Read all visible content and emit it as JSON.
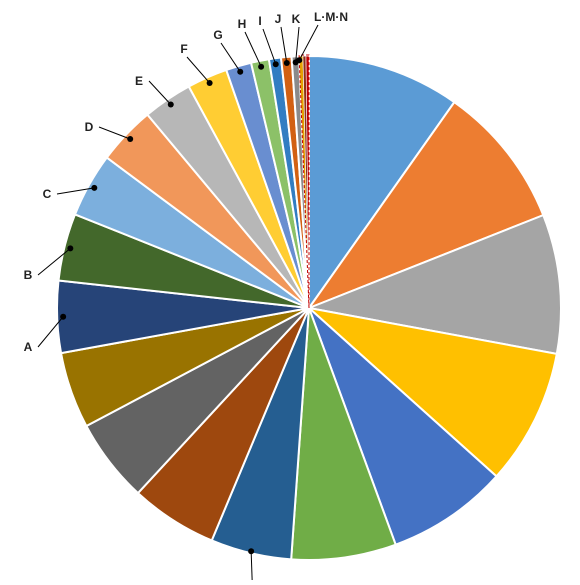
{
  "chart_data": {
    "type": "pie",
    "title": "",
    "legend": "none",
    "slices": [
      {
        "label": "",
        "value": 10.2,
        "color": "#5b9bd5"
      },
      {
        "label": "",
        "value": 9.6,
        "color": "#ed7d31"
      },
      {
        "label": "",
        "value": 9.3,
        "color": "#a5a5a5"
      },
      {
        "label": "",
        "value": 9.1,
        "color": "#ffc000"
      },
      {
        "label": "",
        "value": 8.1,
        "color": "#4472c4"
      },
      {
        "label": "",
        "value": 7.0,
        "color": "#70ad47"
      },
      {
        "label": "",
        "value": 5.4,
        "color": "#255e91"
      },
      {
        "label": "",
        "value": 5.8,
        "color": "#9e480e"
      },
      {
        "label": "",
        "value": 5.6,
        "color": "#636363"
      },
      {
        "label": "",
        "value": 5.1,
        "color": "#997300"
      },
      {
        "label": "A",
        "value": 4.8,
        "color": "#264478"
      },
      {
        "label": "B",
        "value": 4.5,
        "color": "#43682b"
      },
      {
        "label": "C",
        "value": 4.3,
        "color": "#7cafdd"
      },
      {
        "label": "D",
        "value": 3.9,
        "color": "#f1975a"
      },
      {
        "label": "E",
        "value": 3.3,
        "color": "#b7b7b7"
      },
      {
        "label": "F",
        "value": 2.7,
        "color": "#ffcd33"
      },
      {
        "label": "G",
        "value": 1.7,
        "color": "#698ed0"
      },
      {
        "label": "H",
        "value": 1.2,
        "color": "#8cc168"
      },
      {
        "label": "I",
        "value": 0.8,
        "color": "#327dc2"
      },
      {
        "label": "J",
        "value": 0.7,
        "color": "#d26012"
      },
      {
        "label": "K",
        "value": 0.5,
        "color": "#8a8a8a"
      },
      {
        "label": "L",
        "value": 0.25,
        "color": "#e6a100"
      },
      {
        "label": "M",
        "value": 0.2,
        "color": "#8b2f1a"
      },
      {
        "label": "N",
        "value": 0.2,
        "color": "#c00000"
      }
    ],
    "combined_label": "L·M·N"
  }
}
